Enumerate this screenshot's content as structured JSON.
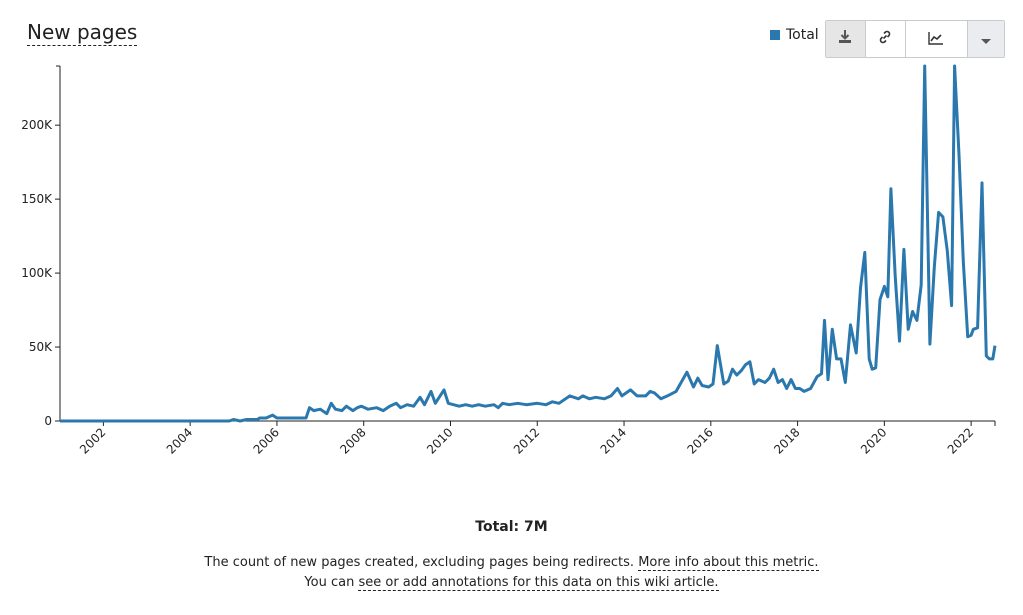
{
  "page": {
    "title": "New pages",
    "total_label": "Total: 7M",
    "description": {
      "line1_text": "The count of new pages created, excluding pages being redirects.",
      "line1_link": "More info about this metric.",
      "line2_text": "You can",
      "line2_link": "see or add annotations for this data on this wiki article."
    }
  },
  "toolbar": {
    "icons": [
      "download-icon",
      "link-icon",
      "line-chart-icon",
      "caret-down-icon"
    ]
  },
  "colors": {
    "series": "#2a78ad"
  },
  "chart_data": {
    "type": "line",
    "title": "New pages",
    "legend": {
      "entries": [
        "Total"
      ],
      "placement": "top-right"
    },
    "xlabel": "",
    "ylabel": "",
    "ylim": [
      0,
      240000
    ],
    "xlim": [
      2001.0,
      2022.55
    ],
    "y_ticks": [
      0,
      50000,
      100000,
      150000,
      200000
    ],
    "y_tick_labels": [
      "0",
      "50K",
      "100K",
      "150K",
      "200K"
    ],
    "x_ticks": [
      2002,
      2004,
      2006,
      2008,
      2010,
      2012,
      2014,
      2016,
      2018,
      2020,
      2022
    ],
    "x_tick_labels": [
      "2002",
      "2004",
      "2006",
      "2008",
      "2010",
      "2012",
      "2014",
      "2016",
      "2018",
      "2020",
      "2022"
    ],
    "series": [
      {
        "name": "Total",
        "points": [
          [
            2001.0,
            0
          ],
          [
            2004.0,
            0
          ],
          [
            2004.9,
            0
          ],
          [
            2005.0,
            1000
          ],
          [
            2005.15,
            0
          ],
          [
            2005.3,
            1000
          ],
          [
            2005.55,
            1000
          ],
          [
            2005.6,
            2000
          ],
          [
            2005.75,
            2000
          ],
          [
            2005.9,
            4000
          ],
          [
            2006.0,
            2000
          ],
          [
            2006.67,
            2000
          ],
          [
            2006.75,
            9000
          ],
          [
            2006.85,
            7000
          ],
          [
            2007.0,
            8000
          ],
          [
            2007.15,
            5000
          ],
          [
            2007.25,
            12000
          ],
          [
            2007.35,
            8000
          ],
          [
            2007.5,
            7000
          ],
          [
            2007.6,
            10000
          ],
          [
            2007.75,
            7000
          ],
          [
            2007.85,
            9000
          ],
          [
            2007.95,
            10000
          ],
          [
            2008.1,
            8000
          ],
          [
            2008.3,
            9000
          ],
          [
            2008.45,
            7000
          ],
          [
            2008.6,
            10000
          ],
          [
            2008.75,
            12000
          ],
          [
            2008.85,
            9000
          ],
          [
            2009.0,
            11000
          ],
          [
            2009.15,
            10000
          ],
          [
            2009.3,
            16000
          ],
          [
            2009.4,
            11000
          ],
          [
            2009.55,
            20000
          ],
          [
            2009.65,
            12000
          ],
          [
            2009.85,
            21000
          ],
          [
            2009.95,
            12000
          ],
          [
            2010.2,
            10000
          ],
          [
            2010.35,
            11000
          ],
          [
            2010.5,
            10000
          ],
          [
            2010.65,
            11000
          ],
          [
            2010.8,
            10000
          ],
          [
            2011.0,
            11000
          ],
          [
            2011.1,
            9000
          ],
          [
            2011.2,
            12000
          ],
          [
            2011.35,
            11000
          ],
          [
            2011.55,
            12000
          ],
          [
            2011.75,
            11000
          ],
          [
            2012.0,
            12000
          ],
          [
            2012.2,
            11000
          ],
          [
            2012.35,
            13000
          ],
          [
            2012.5,
            12000
          ],
          [
            2012.75,
            17000
          ],
          [
            2012.95,
            15000
          ],
          [
            2013.05,
            17000
          ],
          [
            2013.2,
            15000
          ],
          [
            2013.35,
            16000
          ],
          [
            2013.55,
            15000
          ],
          [
            2013.7,
            17000
          ],
          [
            2013.85,
            22000
          ],
          [
            2013.95,
            17000
          ],
          [
            2014.15,
            21000
          ],
          [
            2014.3,
            17000
          ],
          [
            2014.5,
            17000
          ],
          [
            2014.6,
            20000
          ],
          [
            2014.7,
            19000
          ],
          [
            2014.85,
            15000
          ],
          [
            2015.0,
            17000
          ],
          [
            2015.2,
            20000
          ],
          [
            2015.45,
            33000
          ],
          [
            2015.6,
            23000
          ],
          [
            2015.7,
            29000
          ],
          [
            2015.8,
            24000
          ],
          [
            2015.95,
            23000
          ],
          [
            2016.05,
            25000
          ],
          [
            2016.15,
            51000
          ],
          [
            2016.3,
            25000
          ],
          [
            2016.4,
            27000
          ],
          [
            2016.5,
            35000
          ],
          [
            2016.6,
            31000
          ],
          [
            2016.7,
            34000
          ],
          [
            2016.8,
            38000
          ],
          [
            2016.9,
            40000
          ],
          [
            2017.0,
            25000
          ],
          [
            2017.1,
            28000
          ],
          [
            2017.25,
            26000
          ],
          [
            2017.35,
            29000
          ],
          [
            2017.45,
            35000
          ],
          [
            2017.55,
            26000
          ],
          [
            2017.65,
            28000
          ],
          [
            2017.75,
            22000
          ],
          [
            2017.85,
            28000
          ],
          [
            2017.95,
            22000
          ],
          [
            2018.05,
            22000
          ],
          [
            2018.15,
            20000
          ],
          [
            2018.3,
            22000
          ],
          [
            2018.45,
            30000
          ],
          [
            2018.55,
            32000
          ],
          [
            2018.62,
            68000
          ],
          [
            2018.7,
            28000
          ],
          [
            2018.8,
            62000
          ],
          [
            2018.9,
            42000
          ],
          [
            2019.0,
            42000
          ],
          [
            2019.1,
            26000
          ],
          [
            2019.22,
            65000
          ],
          [
            2019.35,
            46000
          ],
          [
            2019.45,
            90000
          ],
          [
            2019.55,
            114000
          ],
          [
            2019.65,
            42000
          ],
          [
            2019.72,
            35000
          ],
          [
            2019.8,
            36000
          ],
          [
            2019.9,
            82000
          ],
          [
            2020.0,
            91000
          ],
          [
            2020.08,
            84000
          ],
          [
            2020.15,
            157000
          ],
          [
            2020.25,
            98000
          ],
          [
            2020.35,
            54000
          ],
          [
            2020.45,
            116000
          ],
          [
            2020.55,
            62000
          ],
          [
            2020.65,
            74000
          ],
          [
            2020.75,
            68000
          ],
          [
            2020.85,
            92000
          ],
          [
            2020.93,
            240000
          ],
          [
            2021.05,
            52000
          ],
          [
            2021.15,
            104000
          ],
          [
            2021.25,
            141000
          ],
          [
            2021.35,
            138000
          ],
          [
            2021.45,
            115000
          ],
          [
            2021.55,
            78000
          ],
          [
            2021.62,
            240000
          ],
          [
            2021.72,
            180000
          ],
          [
            2021.82,
            108000
          ],
          [
            2021.92,
            57000
          ],
          [
            2022.0,
            58000
          ],
          [
            2022.05,
            62000
          ],
          [
            2022.15,
            63000
          ],
          [
            2022.25,
            161000
          ],
          [
            2022.35,
            44000
          ],
          [
            2022.42,
            42000
          ],
          [
            2022.5,
            42000
          ],
          [
            2022.55,
            51000
          ]
        ]
      }
    ],
    "grid": false
  }
}
